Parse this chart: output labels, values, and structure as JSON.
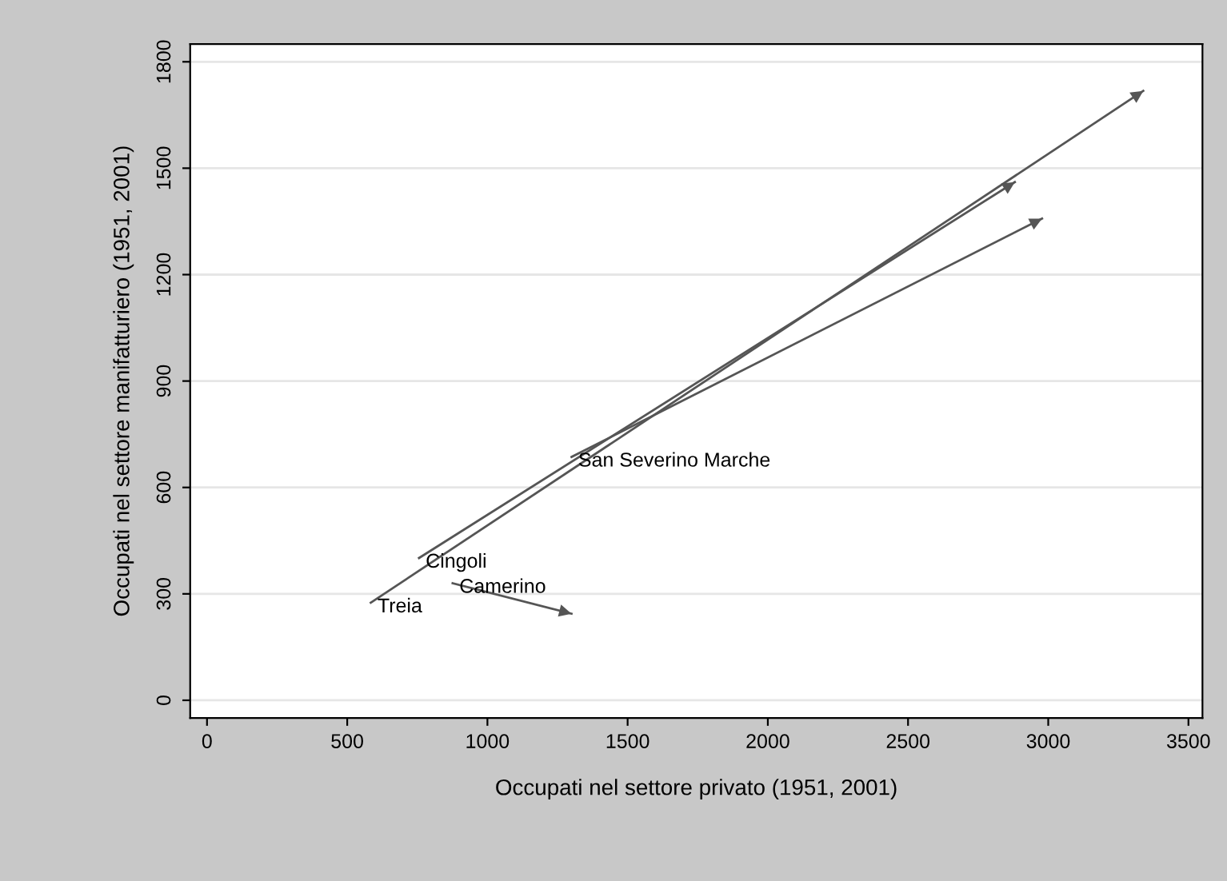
{
  "chart_data": {
    "type": "line",
    "xlabel": "Occupati nel settore privato (1951, 2001)",
    "ylabel": "Occupati nel settore manifatturiero (1951, 2001)",
    "series": [
      {
        "name": "Treia",
        "color": "#555555",
        "x": [
          584,
          3339
        ],
        "values": [
          275,
          1718
        ]
      },
      {
        "name": "Cingoli",
        "color": "#555555",
        "x": [
          756,
          2881
        ],
        "values": [
          401,
          1461
        ]
      },
      {
        "name": "Camerino",
        "color": "#555555",
        "x": [
          876,
          1300
        ],
        "values": [
          330,
          244
        ]
      },
      {
        "name": "San Severino Marche",
        "color": "#555555",
        "x": [
          1300,
          2978
        ],
        "values": [
          686,
          1358
        ]
      }
    ],
    "xlim": [
      -60,
      3550
    ],
    "ylim": [
      -50,
      1850
    ],
    "xticks": [
      0,
      500,
      1000,
      1500,
      2000,
      2500,
      3000,
      3500
    ],
    "yticks": [
      0,
      300,
      600,
      900,
      1200,
      1500,
      1800
    ],
    "grid": "y",
    "marker": "none",
    "line_style": "solid"
  }
}
